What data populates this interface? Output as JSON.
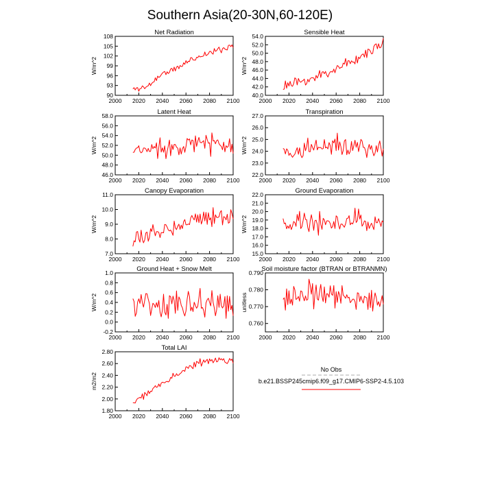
{
  "figure_title": "Southern Asia(20-30N,60-120E)",
  "legend": {
    "obs_label": "No Obs",
    "obs_color": "#a9a9a9",
    "model_label": "b.e21.BSSP245cmip6.f09_g17.CMIP6-SSP2-4.5.103",
    "model_color": "#ff0000"
  },
  "chart_data": [
    {
      "type": "line",
      "title": "Net Radiation",
      "ylabel": "W/m^2",
      "xlim": [
        2000,
        2100
      ],
      "xticks": [
        "2000",
        "2020",
        "2040",
        "2060",
        "2080",
        "2100"
      ],
      "ylim": [
        90,
        108
      ],
      "yticks": [
        "90",
        "93",
        "96",
        "99",
        "102",
        "105",
        "108"
      ],
      "x_start": 2015,
      "x_end": 2100,
      "trend": [
        91.8,
        92.6,
        96.5,
        98,
        100.8,
        102.5,
        103.8,
        105.3
      ],
      "noise": 1.0,
      "seed": 11
    },
    {
      "type": "line",
      "title": "Sensible Heat",
      "ylabel": "W/m^2",
      "xlim": [
        2000,
        2100
      ],
      "xticks": [
        "2000",
        "2020",
        "2040",
        "2060",
        "2080",
        "2100"
      ],
      "ylim": [
        40,
        54
      ],
      "yticks": [
        "40.0",
        "42.0",
        "44.0",
        "46.0",
        "48.0",
        "50.0",
        "52.0",
        "54.0"
      ],
      "x_start": 2015,
      "x_end": 2100,
      "trend": [
        42.3,
        42.8,
        44,
        45.2,
        47,
        48.3,
        50.5,
        52.2
      ],
      "noise": 1.3,
      "seed": 23
    },
    {
      "type": "line",
      "title": "Latent Heat",
      "ylabel": "W/m^2",
      "xlim": [
        2000,
        2100
      ],
      "xticks": [
        "2000",
        "2020",
        "2040",
        "2060",
        "2080",
        "2100"
      ],
      "ylim": [
        46,
        58
      ],
      "yticks": [
        "46.0",
        "48.0",
        "50.0",
        "52.0",
        "54.0",
        "56.0",
        "58.0"
      ],
      "x_start": 2015,
      "x_end": 2100,
      "trend": [
        50.5,
        51.2,
        51.5,
        52,
        52.3,
        52.4,
        52.3,
        52.2
      ],
      "noise": 2.0,
      "seed": 37
    },
    {
      "type": "line",
      "title": "Transpiration",
      "ylabel": "W/m^2",
      "xlim": [
        2000,
        2100
      ],
      "xticks": [
        "2000",
        "2020",
        "2040",
        "2060",
        "2080",
        "2100"
      ],
      "ylim": [
        22,
        27
      ],
      "yticks": [
        "22.0",
        "23.0",
        "24.0",
        "25.0",
        "26.0",
        "27.0"
      ],
      "x_start": 2015,
      "x_end": 2100,
      "trend": [
        23.8,
        24.1,
        24.3,
        24.4,
        24.5,
        24.4,
        24.2,
        24
      ],
      "noise": 0.9,
      "seed": 41
    },
    {
      "type": "line",
      "title": "Canopy Evaporation",
      "ylabel": "W/m^2",
      "xlim": [
        2000,
        2100
      ],
      "xticks": [
        "2000",
        "2020",
        "2040",
        "2060",
        "2080",
        "2100"
      ],
      "ylim": [
        7,
        11
      ],
      "yticks": [
        "7.0",
        "8.0",
        "9.0",
        "10.0",
        "11.0"
      ],
      "x_start": 2015,
      "x_end": 2100,
      "trend": [
        7.8,
        8.2,
        8.6,
        8.9,
        9.3,
        9.5,
        9.6,
        9.5
      ],
      "noise": 0.55,
      "seed": 53
    },
    {
      "type": "line",
      "title": "Ground Evaporation",
      "ylabel": "W/m^2",
      "xlim": [
        2000,
        2100
      ],
      "xticks": [
        "2000",
        "2020",
        "2040",
        "2060",
        "2080",
        "2100"
      ],
      "ylim": [
        15,
        22
      ],
      "yticks": [
        "15.0",
        "16.0",
        "17.0",
        "18.0",
        "19.0",
        "20.0",
        "21.0",
        "22.0"
      ],
      "x_start": 2015,
      "x_end": 2100,
      "trend": [
        18.5,
        18.6,
        18.7,
        18.8,
        18.8,
        18.9,
        18.8,
        18.7
      ],
      "noise": 1.4,
      "seed": 67
    },
    {
      "type": "line",
      "title": "Ground Heat + Snow Melt",
      "ylabel": "W/m^2",
      "xlim": [
        2000,
        2100
      ],
      "xticks": [
        "2000",
        "2020",
        "2040",
        "2060",
        "2080",
        "2100"
      ],
      "ylim": [
        -0.2,
        1.0
      ],
      "yticks": [
        "-0.2",
        "0.0",
        "0.2",
        "0.4",
        "0.6",
        "0.8",
        "1.0"
      ],
      "x_start": 2015,
      "x_end": 2100,
      "trend": [
        0.4,
        0.4,
        0.38,
        0.38,
        0.36,
        0.35,
        0.34,
        0.33
      ],
      "noise": 0.28,
      "seed": 79
    },
    {
      "type": "line",
      "title": "Soil moisture factor (BTRAN or BTRANMN)",
      "ylabel": "unitless",
      "xlim": [
        2000,
        2100
      ],
      "xticks": [
        "2000",
        "2020",
        "2040",
        "2060",
        "2080",
        "2100"
      ],
      "ylim": [
        0.755,
        0.79
      ],
      "yticks": [
        "0.760",
        "0.770",
        "0.780",
        "0.790"
      ],
      "x_start": 2015,
      "x_end": 2100,
      "trend": [
        0.774,
        0.776,
        0.777,
        0.777,
        0.776,
        0.775,
        0.774,
        0.771
      ],
      "noise": 0.008,
      "seed": 83
    },
    {
      "type": "line",
      "title": "Total LAI",
      "ylabel": "m2/m2",
      "xlim": [
        2000,
        2100
      ],
      "xticks": [
        "2000",
        "2020",
        "2040",
        "2060",
        "2080",
        "2100"
      ],
      "ylim": [
        1.8,
        2.8
      ],
      "yticks": [
        "1.80",
        "2.00",
        "2.20",
        "2.40",
        "2.60",
        "2.80"
      ],
      "x_start": 2015,
      "x_end": 2100,
      "trend": [
        1.93,
        2.1,
        2.25,
        2.4,
        2.57,
        2.62,
        2.66,
        2.65
      ],
      "noise": 0.06,
      "seed": 97
    }
  ]
}
